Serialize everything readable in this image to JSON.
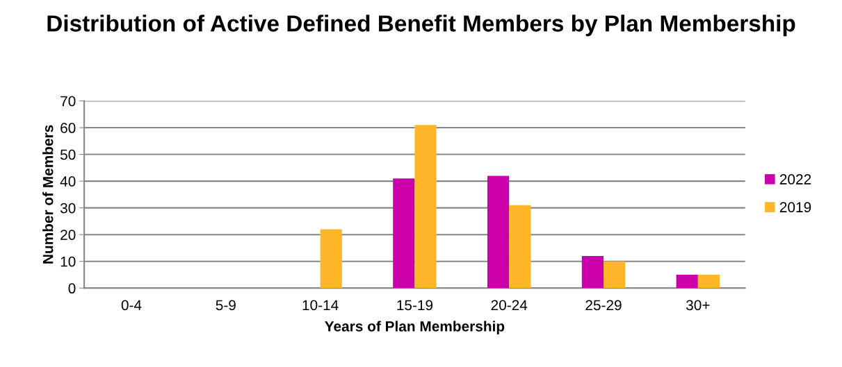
{
  "chart_data": {
    "type": "bar",
    "title": "Distribution of Active Defined Benefit Members by Plan Membership",
    "xlabel": "Years of Plan Membership",
    "ylabel": "Number of Members",
    "categories": [
      "0-4",
      "5-9",
      "10-14",
      "15-19",
      "20-24",
      "25-29",
      "30+"
    ],
    "series": [
      {
        "name": "2022",
        "color": "#cc00aa",
        "values": [
          0,
          0,
          0,
          41,
          42,
          12,
          5
        ]
      },
      {
        "name": "2019",
        "color": "#ffb629",
        "values": [
          0,
          0,
          22,
          61,
          31,
          10,
          5
        ]
      }
    ],
    "ylim": [
      0,
      70
    ],
    "yticks": [
      0,
      10,
      20,
      30,
      40,
      50,
      60,
      70
    ],
    "grid": "y",
    "legend": "right"
  }
}
